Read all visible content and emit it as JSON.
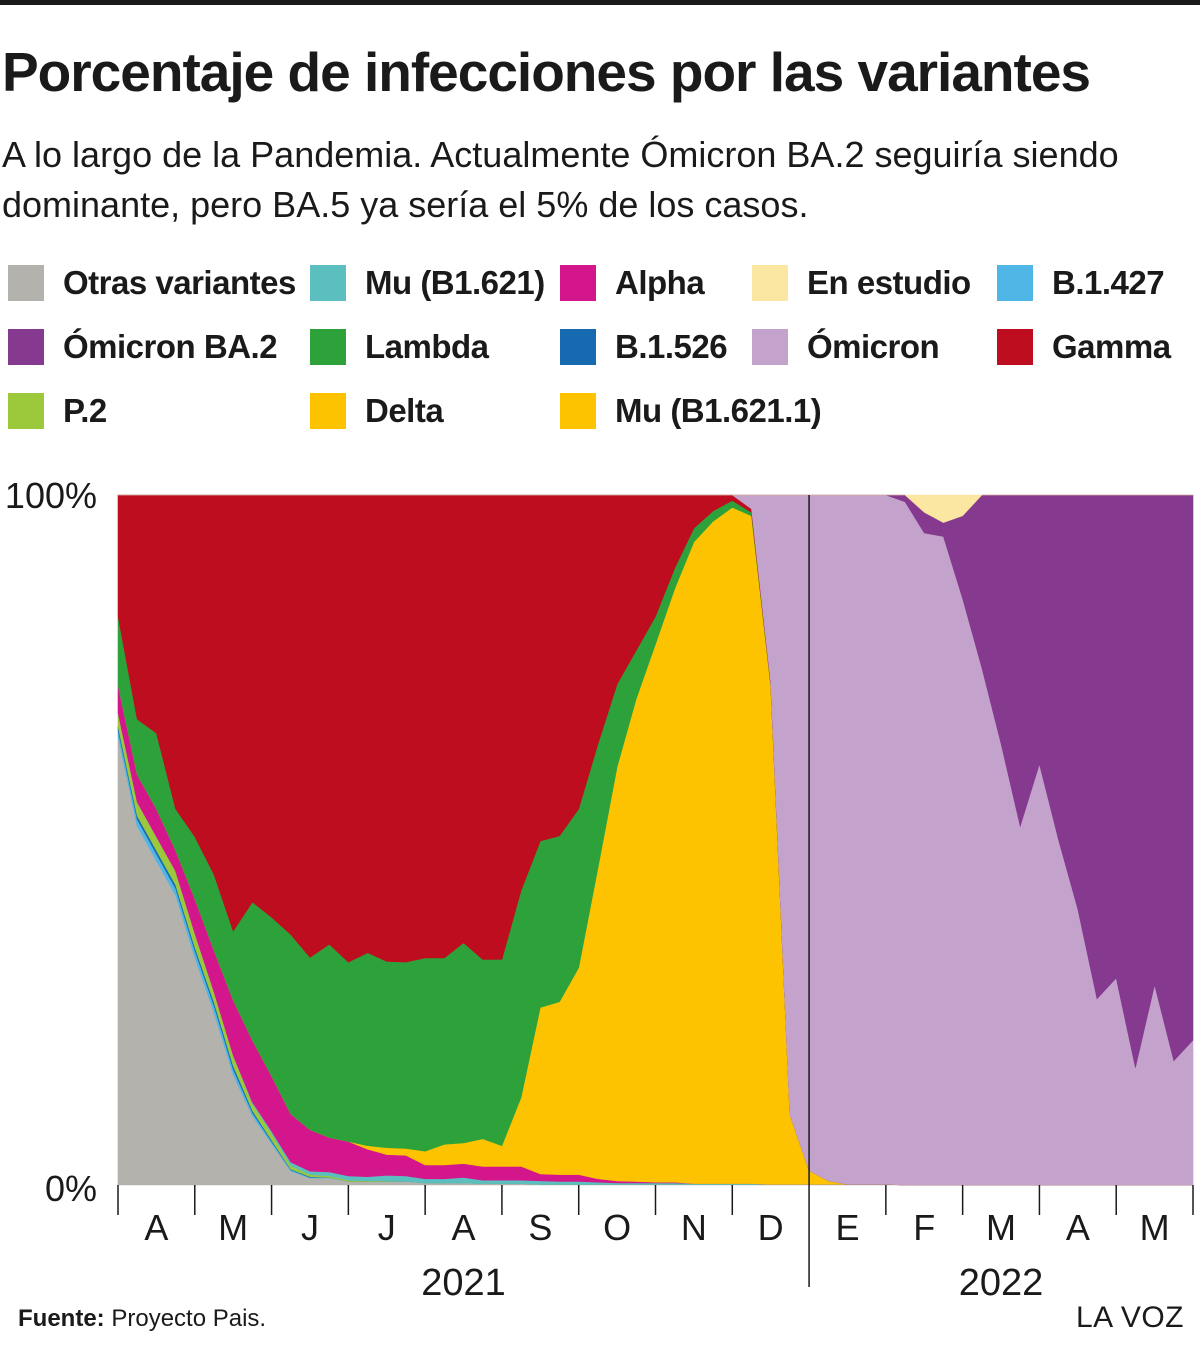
{
  "header": {
    "title": "Porcentaje de infecciones por las variantes",
    "subtitle": "A lo largo de la Pandemia. Actualmente Ómicron BA.2 seguiría siendo dominante, pero BA.5 ya sería el 5% de los casos."
  },
  "legend": [
    {
      "label": "Otras variantes",
      "color": "#b4b2ad"
    },
    {
      "label": "Mu (B1.621)",
      "color": "#5bbfbf"
    },
    {
      "label": "Alpha",
      "color": "#d4168c"
    },
    {
      "label": "En estudio",
      "color": "#fbe6a2"
    },
    {
      "label": "B.1.427",
      "color": "#4fb6e6"
    },
    {
      "label": "Ómicron BA.2",
      "color": "#85398f"
    },
    {
      "label": "Lambda",
      "color": "#2ea23a"
    },
    {
      "label": "B.1.526",
      "color": "#1769b0"
    },
    {
      "label": "Ómicron",
      "color": "#c3a3cc"
    },
    {
      "label": "Gamma",
      "color": "#be0d1e"
    },
    {
      "label": "P.2",
      "color": "#9cc83c"
    },
    {
      "label": "Delta",
      "color": "#fdc300"
    },
    {
      "label": "Mu (B1.621.1)",
      "color": "#fdc300"
    }
  ],
  "chart_data": {
    "type": "area",
    "stacked": true,
    "y_unit": "%",
    "ylim": [
      0,
      100
    ],
    "yticks": [
      "0%",
      "100%"
    ],
    "month_labels": [
      "A",
      "M",
      "J",
      "J",
      "A",
      "S",
      "O",
      "N",
      "D",
      "E",
      "F",
      "M",
      "A",
      "M"
    ],
    "year_labels": [
      "2021",
      "2022"
    ],
    "x_months": [
      0,
      0.25,
      0.5,
      0.75,
      1,
      1.25,
      1.5,
      1.75,
      2,
      2.25,
      2.5,
      2.75,
      3,
      3.25,
      3.5,
      3.75,
      4,
      4.25,
      4.5,
      4.75,
      5,
      5.25,
      5.5,
      5.75,
      6,
      6.25,
      6.5,
      6.75,
      7,
      7.25,
      7.5,
      7.75,
      8,
      8.25,
      8.5,
      8.75,
      9,
      9.25,
      9.5,
      9.75,
      10,
      10.25,
      10.5,
      10.75,
      11,
      11.25,
      11.5,
      11.75,
      12,
      12.25,
      12.5,
      12.75,
      13,
      13.25,
      13.5,
      13.75,
      14
    ],
    "series": [
      {
        "name": "Otras variantes",
        "color": "#b4b2ad",
        "values": [
          65,
          52,
          47,
          42,
          33,
          25,
          16,
          10,
          6,
          2,
          1,
          1,
          0.5,
          0.5,
          0.5,
          0.5,
          0.3,
          0.3,
          0.3,
          0.2,
          0.2,
          0.2,
          0.1,
          0.1,
          0.1,
          0.1,
          0.1,
          0.1,
          0.1,
          0.1,
          0.1,
          0.1,
          0.1,
          0.1,
          0.1,
          0.1,
          0.1,
          0.1,
          0.1,
          0.1,
          0.1,
          0,
          0,
          0,
          0,
          0,
          0,
          0,
          0,
          0,
          0,
          0,
          0,
          0,
          0,
          0,
          0
        ]
      },
      {
        "name": "B.1.427",
        "color": "#4fb6e6",
        "values": [
          1,
          1,
          1,
          1,
          1,
          1,
          0.8,
          0.5,
          0.3,
          0.2,
          0.1,
          0.1,
          0,
          0,
          0,
          0,
          0,
          0,
          0,
          0,
          0,
          0,
          0,
          0,
          0,
          0,
          0,
          0,
          0,
          0,
          0,
          0,
          0,
          0,
          0,
          0,
          0,
          0,
          0,
          0,
          0,
          0,
          0,
          0,
          0,
          0,
          0,
          0,
          0,
          0,
          0,
          0,
          0,
          0,
          0,
          0,
          0
        ]
      },
      {
        "name": "B.1.526",
        "color": "#1769b0",
        "values": [
          0.5,
          0.5,
          0.5,
          0.5,
          0.5,
          0.5,
          0.5,
          0.3,
          0.2,
          0.1,
          0.1,
          0,
          0,
          0,
          0,
          0,
          0,
          0,
          0,
          0,
          0,
          0,
          0,
          0,
          0,
          0,
          0,
          0,
          0,
          0,
          0,
          0,
          0,
          0,
          0,
          0,
          0,
          0,
          0,
          0,
          0,
          0,
          0,
          0,
          0,
          0,
          0,
          0,
          0,
          0,
          0,
          0,
          0,
          0,
          0,
          0,
          0
        ]
      },
      {
        "name": "P.2",
        "color": "#9cc83c",
        "values": [
          2,
          2,
          2,
          2,
          2,
          1.5,
          1.5,
          1,
          1,
          0.5,
          0.3,
          0.2,
          0.2,
          0.1,
          0.1,
          0,
          0,
          0,
          0,
          0,
          0,
          0,
          0,
          0,
          0,
          0,
          0,
          0,
          0,
          0,
          0,
          0,
          0,
          0,
          0,
          0,
          0,
          0,
          0,
          0,
          0,
          0,
          0,
          0,
          0,
          0,
          0,
          0,
          0,
          0,
          0,
          0,
          0,
          0,
          0,
          0,
          0
        ]
      },
      {
        "name": "Mu (B1.621)",
        "color": "#5bbfbf",
        "values": [
          0,
          0,
          0,
          0,
          0,
          0,
          0,
          0.2,
          0.3,
          0.5,
          0.5,
          0.6,
          0.6,
          0.6,
          0.8,
          0.8,
          0.6,
          0.6,
          0.8,
          0.5,
          0.5,
          0.5,
          0.5,
          0.4,
          0.4,
          0.3,
          0.2,
          0.2,
          0.2,
          0.2,
          0.1,
          0.1,
          0.1,
          0.1,
          0,
          0,
          0,
          0,
          0,
          0,
          0,
          0,
          0,
          0,
          0,
          0,
          0,
          0,
          0,
          0,
          0,
          0,
          0,
          0,
          0,
          0,
          0
        ]
      },
      {
        "name": "Alpha",
        "color": "#d4168c",
        "values": [
          4,
          4,
          4,
          3,
          5,
          6,
          8,
          9,
          8,
          7,
          6,
          5,
          5,
          4,
          3,
          3,
          2,
          2,
          2,
          2,
          2,
          2,
          1,
          1,
          1,
          0.5,
          0.3,
          0.2,
          0.1,
          0.1,
          0,
          0,
          0,
          0,
          0,
          0,
          0,
          0,
          0,
          0,
          0,
          0,
          0,
          0,
          0,
          0,
          0,
          0,
          0,
          0,
          0,
          0,
          0,
          0,
          0,
          0,
          0
        ]
      },
      {
        "name": "Delta",
        "color": "#fdc300",
        "values": [
          0,
          0,
          0,
          0,
          0,
          0,
          0,
          0,
          0,
          0,
          0,
          0,
          0,
          0.5,
          1,
          1,
          2,
          3,
          3,
          4,
          3,
          10,
          24,
          25,
          30,
          45,
          60,
          70,
          78,
          86,
          93,
          96,
          98,
          96,
          72,
          10,
          2,
          0.5,
          0,
          0,
          0,
          0,
          0,
          0,
          0,
          0,
          0,
          0,
          0,
          0,
          0,
          0,
          0,
          0,
          0,
          0,
          0
        ]
      },
      {
        "name": "Lambda",
        "color": "#2ea23a",
        "values": [
          10,
          8,
          11,
          6,
          9,
          11,
          10,
          20,
          23,
          26,
          25,
          28,
          26,
          28,
          27,
          27,
          28,
          27,
          29,
          26,
          27,
          30,
          24,
          24,
          23,
          18,
          12,
          7,
          4,
          3,
          2,
          1.5,
          1,
          0.5,
          0.2,
          0,
          0,
          0,
          0,
          0,
          0,
          0,
          0,
          0,
          0,
          0,
          0,
          0,
          0,
          0,
          0,
          0,
          0,
          0,
          0,
          0,
          0
        ]
      },
      {
        "name": "Gamma",
        "color": "#be0d1e",
        "values": [
          17.5,
          32.5,
          34.5,
          45.5,
          49.5,
          55,
          63.2,
          59,
          61.2,
          63.7,
          67,
          65.1,
          67.7,
          66.4,
          67.6,
          67.7,
          67.1,
          67.1,
          64.9,
          67.3,
          67.3,
          57.3,
          49.9,
          49.3,
          45.5,
          36.1,
          27.4,
          22.5,
          17.6,
          10.6,
          4.8,
          2.3,
          0.8,
          0.5,
          0.3,
          0,
          0,
          0,
          0,
          0,
          0,
          0,
          0,
          0,
          0,
          0,
          0,
          0,
          0,
          0,
          0,
          0,
          0,
          0,
          0,
          0,
          0
        ]
      },
      {
        "name": "Ómicron",
        "color": "#c3a3cc",
        "values": [
          0,
          0,
          0,
          0,
          0,
          0,
          0,
          0,
          0,
          0,
          0,
          0,
          0,
          0,
          0,
          0,
          0,
          0,
          0,
          0,
          0,
          0,
          0,
          0,
          0,
          0,
          0,
          0,
          0,
          0,
          0,
          0,
          0,
          2,
          27,
          89,
          97.9,
          99.4,
          99.9,
          100,
          100,
          99,
          94.5,
          94,
          85,
          75,
          64,
          52,
          61,
          50,
          40,
          27,
          30,
          17,
          29,
          18,
          21
        ]
      },
      {
        "name": "Ómicron BA.2",
        "color": "#85398f",
        "values": [
          0,
          0,
          0,
          0,
          0,
          0,
          0,
          0,
          0,
          0,
          0,
          0,
          0,
          0,
          0,
          0,
          0,
          0,
          0,
          0,
          0,
          0,
          0,
          0,
          0,
          0,
          0,
          0,
          0,
          0,
          0,
          0,
          0,
          0,
          0,
          0,
          0,
          0,
          0,
          0,
          0,
          1,
          3,
          2,
          12,
          25,
          36,
          48,
          39,
          50,
          60,
          73,
          70,
          83,
          71,
          82,
          79
        ]
      },
      {
        "name": "En estudio",
        "color": "#fbe6a2",
        "values": [
          0,
          0,
          0,
          0,
          0,
          0,
          0,
          0,
          0,
          0,
          0,
          0,
          0,
          0,
          0,
          0,
          0,
          0,
          0,
          0,
          0,
          0,
          0,
          0,
          0,
          0,
          0,
          0,
          0,
          0,
          0,
          0,
          0,
          0,
          0,
          0,
          0,
          0,
          0,
          0,
          0,
          0,
          2.5,
          4,
          3,
          0,
          0,
          0,
          0,
          0,
          0,
          0,
          0,
          0,
          0,
          0,
          0
        ]
      }
    ]
  },
  "footer": {
    "source_label": "Fuente:",
    "source_text": "Proyecto Pais.",
    "brand": "LA VOZ"
  }
}
